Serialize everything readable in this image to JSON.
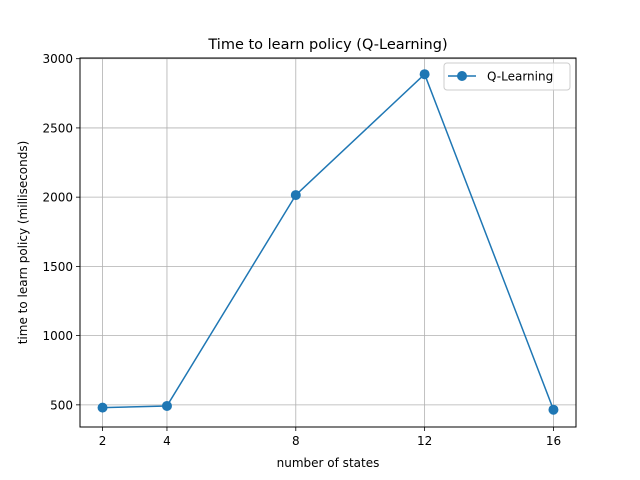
{
  "chart_data": {
    "type": "line",
    "title": "Time to learn policy (Q-Learning)",
    "xlabel": "number of states",
    "ylabel": "time to learn policy (milliseconds)",
    "x": [
      2,
      4,
      8,
      12,
      16
    ],
    "series": [
      {
        "name": "Q-Learning",
        "values": [
          480,
          492,
          2015,
          2888,
          465
        ],
        "color": "#1f77b4",
        "marker": "circle"
      }
    ],
    "xlim": [
      1.3,
      16.7
    ],
    "ylim": [
      340,
      3005
    ],
    "xticks": [
      2,
      4,
      8,
      12,
      16
    ],
    "yticks": [
      500,
      1000,
      1500,
      2000,
      2500,
      3000
    ],
    "grid": true,
    "legend_position": "top-right"
  }
}
